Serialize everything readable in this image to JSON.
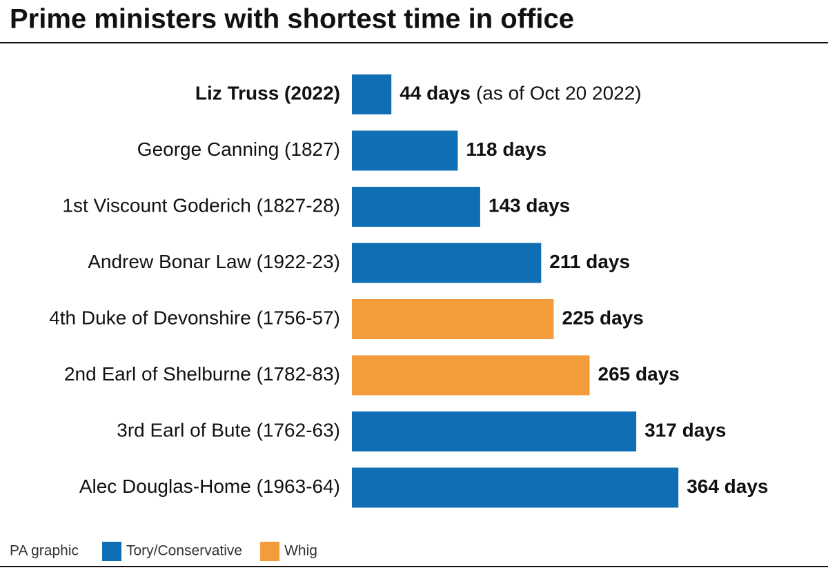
{
  "chart_data": {
    "type": "bar",
    "orientation": "horizontal",
    "title": "Prime ministers with shortest time in office",
    "categories": [
      "Liz Truss (2022)",
      "George Canning (1827)",
      "1st Viscount Goderich (1827-28)",
      "Andrew Bonar Law (1922-23)",
      "4th Duke of Devonshire (1756-57)",
      "2nd Earl of Shelburne (1782-83)",
      "3rd Earl of Bute (1762-63)",
      "Alec Douglas-Home (1963-64)"
    ],
    "series": [
      {
        "name": "Tory/Conservative",
        "color": "#0f6eb4",
        "values": [
          44,
          118,
          143,
          211,
          null,
          null,
          317,
          364
        ],
        "value_labels": [
          "44 days",
          "118 days",
          "143 days",
          "211 days",
          null,
          null,
          "317 days",
          "364 days"
        ]
      },
      {
        "name": "Whig",
        "color": "#f39c3c",
        "values": [
          null,
          null,
          null,
          null,
          225,
          265,
          null,
          null
        ],
        "value_labels": [
          null,
          null,
          null,
          null,
          "225 days",
          "265 days",
          null,
          null
        ]
      }
    ],
    "annotation": "(as of Oct 20 2022)",
    "source": "PA graphic"
  }
}
